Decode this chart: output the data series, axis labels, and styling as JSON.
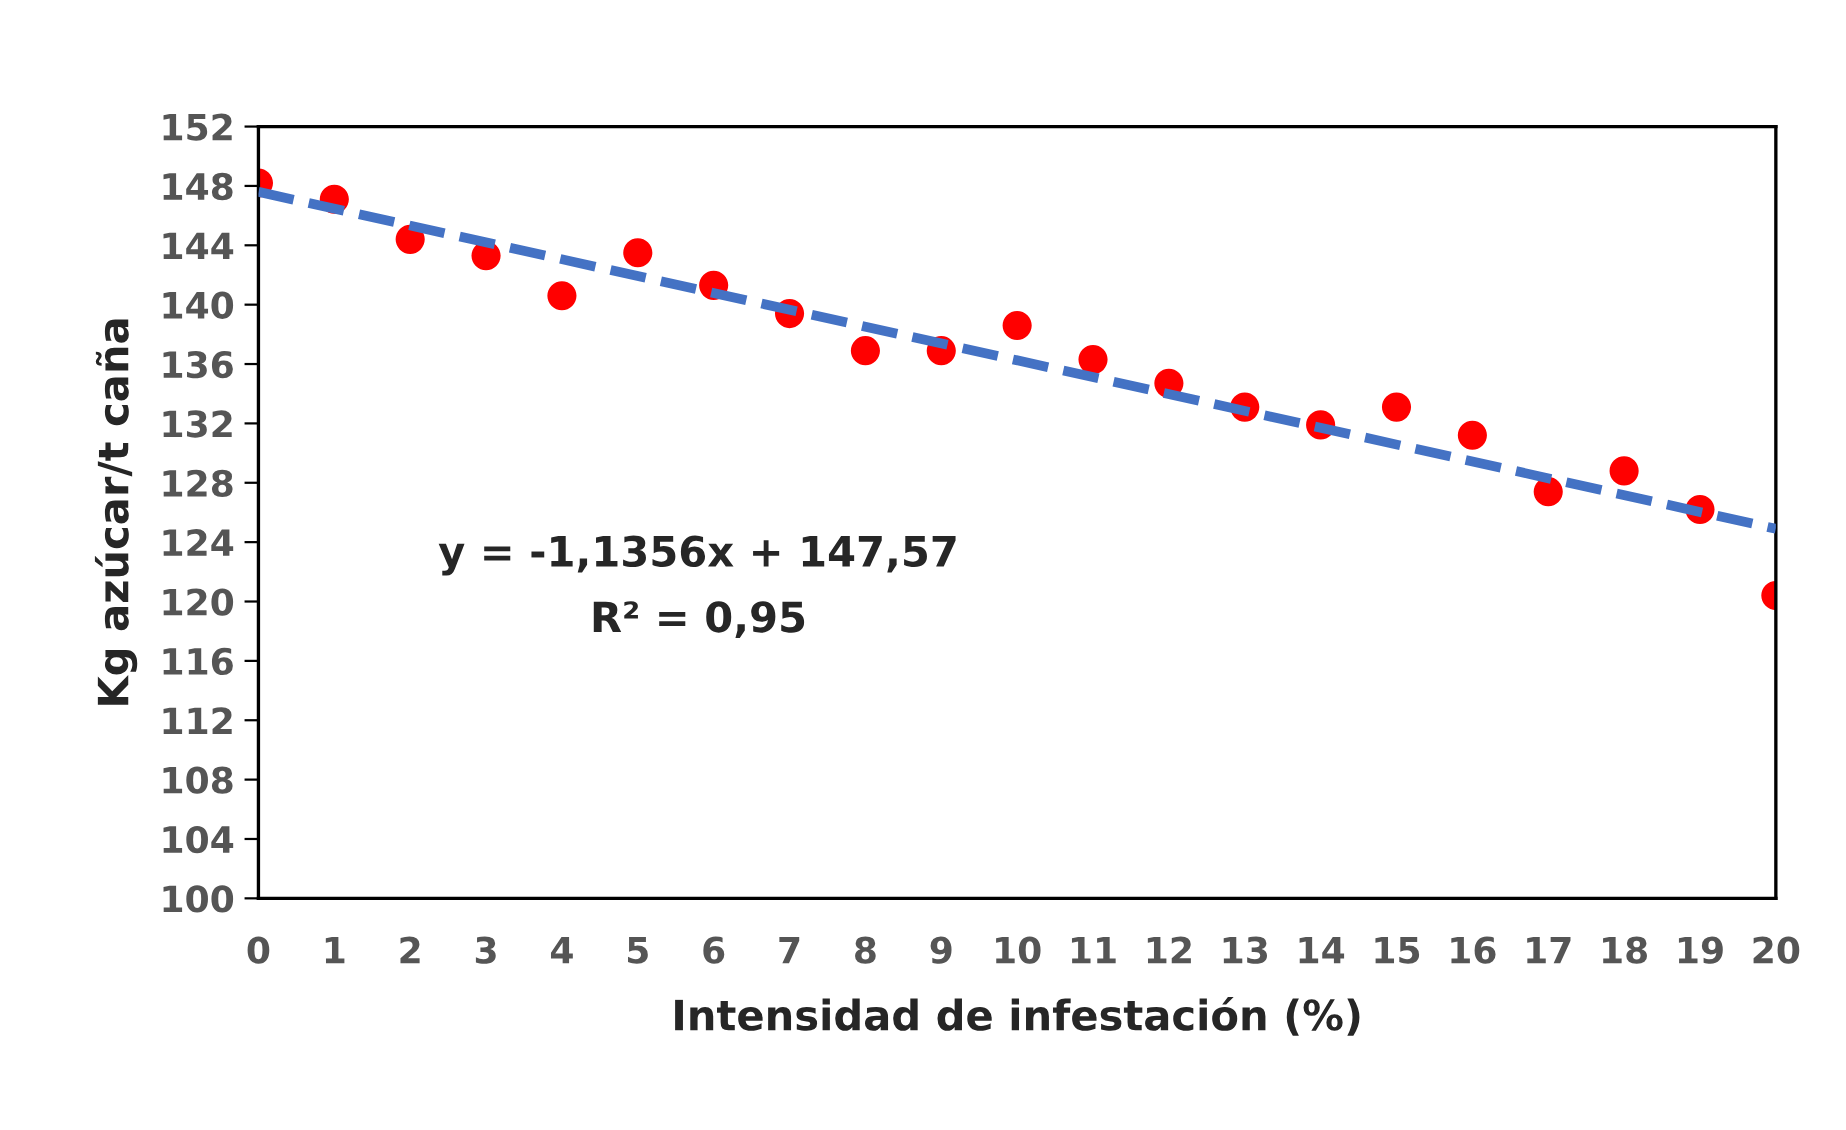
{
  "chart_data": {
    "type": "scatter",
    "xlabel": "Intensidad de infestación (%)",
    "ylabel": "Kg azúcar/t caña",
    "x": [
      0,
      1,
      2,
      3,
      4,
      5,
      6,
      7,
      8,
      9,
      10,
      11,
      12,
      13,
      14,
      15,
      16,
      17,
      18,
      19,
      20
    ],
    "series": [
      {
        "color": "#ff0000",
        "marker": "circle",
        "values": [
          148.2,
          147.1,
          144.4,
          143.3,
          140.6,
          143.5,
          141.3,
          139.4,
          136.9,
          136.9,
          138.6,
          136.3,
          134.7,
          133.1,
          131.9,
          133.1,
          131.2,
          127.4,
          128.8,
          126.2,
          120.4
        ]
      },
      {
        "type": "line",
        "color": "#4472c4",
        "line_style": "dashed",
        "x": [
          0,
          20
        ],
        "values": [
          147.6,
          124.9
        ]
      }
    ],
    "xlim": [
      0,
      20
    ],
    "xticks": [
      0,
      1,
      2,
      3,
      4,
      5,
      6,
      7,
      8,
      9,
      10,
      11,
      12,
      13,
      14,
      15,
      16,
      17,
      18,
      19,
      20
    ],
    "ylim": [
      100,
      152
    ],
    "yticks": [
      100,
      104,
      108,
      112,
      116,
      120,
      124,
      128,
      132,
      136,
      140,
      144,
      148,
      152
    ],
    "grid": false,
    "legend": false,
    "annotations": [
      "y = -1,1356x + 147,57",
      "R² = 0,95"
    ]
  }
}
